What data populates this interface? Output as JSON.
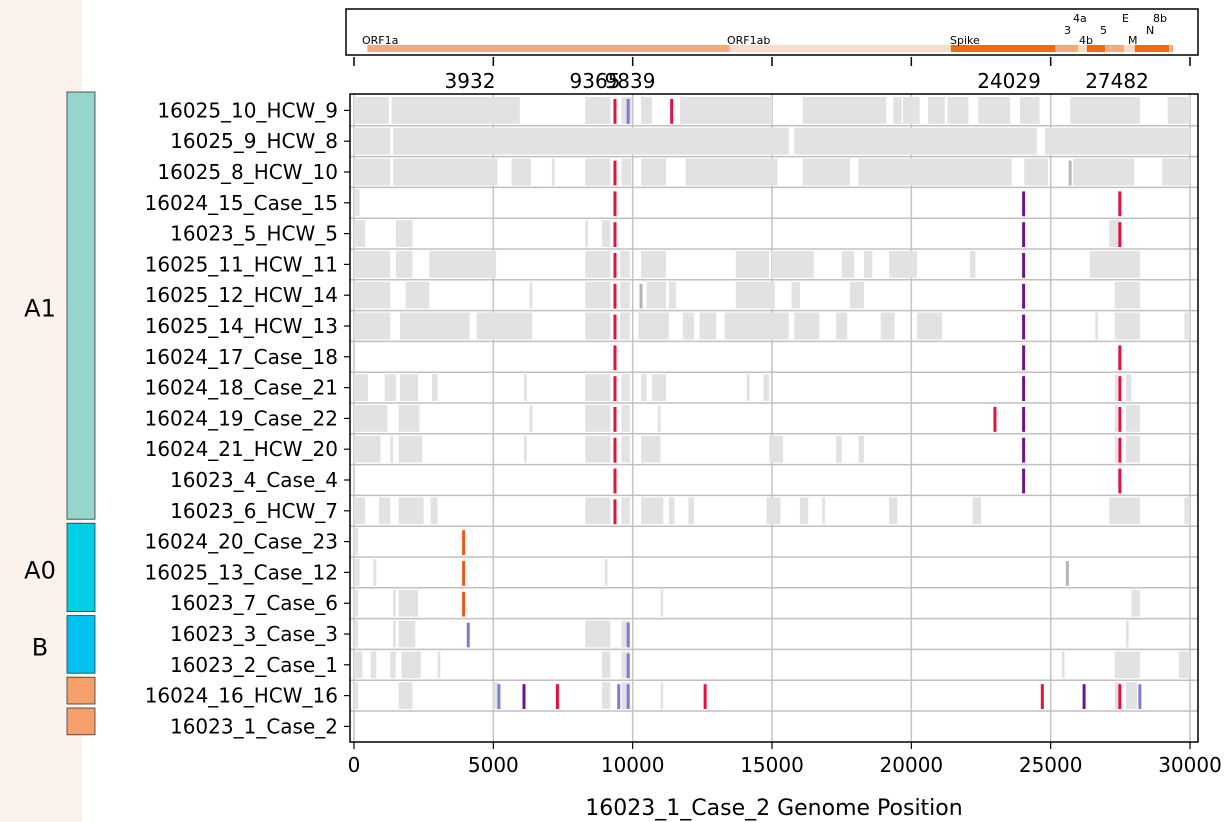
{
  "chart_data": {
    "type": "genome-alignment",
    "xlabel": "16023_1_Case_2 Genome Position",
    "xlim": [
      0,
      30000
    ],
    "xticks": [
      0,
      5000,
      10000,
      15000,
      20000,
      25000,
      30000
    ],
    "grid": true,
    "highlight_positions": [
      3932,
      9365,
      9839,
      24029,
      27482
    ],
    "genes": [
      {
        "name": "ORF1a",
        "start": 266,
        "end": 13483,
        "color": "#f8a876",
        "label": "ORF1a"
      },
      {
        "name": "ORF1ab",
        "start": 13483,
        "end": 21555,
        "color": "#fcdcc8",
        "label": "ORF1ab"
      },
      {
        "name": "S",
        "start": 21563,
        "end": 25384,
        "color": "#ee6a10",
        "label": "Spike"
      },
      {
        "name": "ORF3a",
        "start": 25393,
        "end": 26220,
        "color": "#f8a876",
        "label": "3"
      },
      {
        "name": "E",
        "start": 26245,
        "end": 26472,
        "color": "#fcdcc8",
        "label": "E"
      },
      {
        "name": "M",
        "start": 26523,
        "end": 27191,
        "color": "#ee6a10",
        "label": "M"
      },
      {
        "name": "ORF6",
        "start": 27202,
        "end": 27387,
        "color": "#f8a876",
        "label": ""
      },
      {
        "name": "ORF7a",
        "start": 27394,
        "end": 27759,
        "color": "#f8a876",
        "label": "4a"
      },
      {
        "name": "ORF7b",
        "start": 27756,
        "end": 27887,
        "color": "#f8a876",
        "label": "4b"
      },
      {
        "name": "ORF8",
        "start": 27894,
        "end": 28259,
        "color": "#fcdcc8",
        "label": "5"
      },
      {
        "name": "N",
        "start": 28274,
        "end": 29533,
        "color": "#ee6a10",
        "label": "N"
      },
      {
        "name": "ORF10",
        "start": 29558,
        "end": 29674,
        "color": "#f8a876",
        "label": "8b"
      }
    ],
    "groups": [
      {
        "label": "A1",
        "rows": [
          0,
          13
        ],
        "color": "#94d6cc"
      },
      {
        "label": "A0",
        "rows": [
          14,
          16
        ],
        "color": "#00cfe6"
      },
      {
        "label": "B",
        "rows": [
          17,
          18
        ],
        "color": "#00c2f1"
      },
      {
        "label": "",
        "rows": [
          19,
          19
        ],
        "color": "#f5a06a"
      },
      {
        "label": "",
        "rows": [
          20,
          20
        ],
        "color": "#f5a06a"
      }
    ],
    "colors": {
      "gap": "#e2e2e2",
      "gap_dark": "#b6b6b6",
      "red": "#e3123d",
      "purple": "#6a168e",
      "blue": "#7b7bd8",
      "orange": "#ee5a1c",
      "rowline": "#c0c0c0",
      "grid": "#c4c4c4"
    },
    "samples": [
      {
        "name": "16025_10_HCW_9",
        "gaps": [
          [
            0,
            1250
          ],
          [
            1350,
            5950
          ],
          [
            8300,
            9200
          ],
          [
            9600,
            9960
          ],
          [
            10300,
            10700
          ],
          [
            11700,
            15000
          ],
          [
            16100,
            19100
          ],
          [
            19350,
            19650
          ],
          [
            19700,
            20300
          ],
          [
            20600,
            21200
          ],
          [
            21300,
            22050
          ],
          [
            22400,
            23550
          ],
          [
            23900,
            24600
          ],
          [
            25700,
            28200
          ],
          [
            29200,
            30000
          ]
        ],
        "muts": [
          [
            9365,
            "red"
          ],
          [
            9839,
            "blue"
          ],
          [
            11400,
            "red"
          ]
        ]
      },
      {
        "name": "16025_9_HCW_8",
        "gaps": [
          [
            0,
            1300
          ],
          [
            1400,
            15600
          ],
          [
            15800,
            24500
          ],
          [
            24800,
            30000
          ]
        ],
        "muts": []
      },
      {
        "name": "16025_8_HCW_10",
        "gaps": [
          [
            0,
            1300
          ],
          [
            1400,
            5150
          ],
          [
            5650,
            6350
          ],
          [
            7100,
            7200
          ],
          [
            8300,
            9200
          ],
          [
            9600,
            9950
          ],
          [
            10300,
            11200
          ],
          [
            11900,
            15200
          ],
          [
            16100,
            17800
          ],
          [
            18100,
            23600
          ],
          [
            24050,
            24900
          ],
          [
            25800,
            28000
          ],
          [
            29000,
            30000
          ]
        ],
        "muts": [
          [
            9365,
            "red"
          ],
          [
            25700,
            "gap_dark"
          ]
        ]
      },
      {
        "name": "16024_15_Case_15",
        "gaps": [
          [
            0,
            200
          ]
        ],
        "muts": [
          [
            9365,
            "red"
          ],
          [
            24029,
            "purple"
          ],
          [
            27482,
            "red"
          ]
        ]
      },
      {
        "name": "16023_5_HCW_5",
        "gaps": [
          [
            0,
            400
          ],
          [
            1500,
            2100
          ],
          [
            8300,
            8400
          ],
          [
            8900,
            9200
          ],
          [
            27100,
            27500
          ]
        ],
        "muts": [
          [
            9365,
            "red"
          ],
          [
            24029,
            "purple"
          ],
          [
            27482,
            "red"
          ]
        ]
      },
      {
        "name": "16025_11_HCW_11",
        "gaps": [
          [
            0,
            1300
          ],
          [
            1500,
            2100
          ],
          [
            2700,
            5100
          ],
          [
            8300,
            9200
          ],
          [
            9550,
            9900
          ],
          [
            10300,
            11200
          ],
          [
            13700,
            14900
          ],
          [
            15000,
            16500
          ],
          [
            17500,
            17950
          ],
          [
            18300,
            18600
          ],
          [
            19200,
            20200
          ],
          [
            22100,
            22300
          ],
          [
            26400,
            28200
          ]
        ],
        "muts": [
          [
            9365,
            "red"
          ],
          [
            24029,
            "purple"
          ]
        ]
      },
      {
        "name": "16025_12_HCW_14",
        "gaps": [
          [
            0,
            1300
          ],
          [
            1850,
            2700
          ],
          [
            6300,
            6400
          ],
          [
            8300,
            9200
          ],
          [
            9550,
            9900
          ],
          [
            10500,
            11200
          ],
          [
            11300,
            11550
          ],
          [
            13700,
            15100
          ],
          [
            15700,
            16000
          ],
          [
            17800,
            18300
          ],
          [
            27300,
            28200
          ]
        ],
        "muts": [
          [
            9365,
            "red"
          ],
          [
            10300,
            "gap_dark"
          ],
          [
            24029,
            "purple"
          ]
        ]
      },
      {
        "name": "16025_14_HCW_13",
        "gaps": [
          [
            0,
            1300
          ],
          [
            1650,
            4150
          ],
          [
            4400,
            6400
          ],
          [
            8300,
            9200
          ],
          [
            9550,
            9900
          ],
          [
            10200,
            11300
          ],
          [
            11800,
            12200
          ],
          [
            12400,
            13000
          ],
          [
            13300,
            15600
          ],
          [
            15800,
            16700
          ],
          [
            17300,
            17700
          ],
          [
            18900,
            19400
          ],
          [
            20200,
            21100
          ],
          [
            26600,
            26700
          ],
          [
            27300,
            28200
          ],
          [
            29800,
            30000
          ]
        ],
        "muts": [
          [
            9365,
            "red"
          ],
          [
            24029,
            "purple"
          ]
        ]
      },
      {
        "name": "16024_17_Case_18",
        "gaps": [],
        "muts": [
          [
            9365,
            "red"
          ],
          [
            24029,
            "purple"
          ],
          [
            27482,
            "red"
          ]
        ]
      },
      {
        "name": "16024_18_Case_21",
        "gaps": [
          [
            0,
            500
          ],
          [
            1100,
            1500
          ],
          [
            1650,
            2300
          ],
          [
            2800,
            3000
          ],
          [
            6100,
            6200
          ],
          [
            8300,
            9200
          ],
          [
            9600,
            9900
          ],
          [
            10300,
            10500
          ],
          [
            10700,
            11200
          ],
          [
            14100,
            14200
          ],
          [
            14700,
            14900
          ],
          [
            27300,
            27400
          ],
          [
            27700,
            27900
          ]
        ],
        "muts": [
          [
            9365,
            "red"
          ],
          [
            24029,
            "purple"
          ],
          [
            27482,
            "red"
          ]
        ]
      },
      {
        "name": "16024_19_Case_22",
        "gaps": [
          [
            0,
            1200
          ],
          [
            1600,
            2350
          ],
          [
            6300,
            6400
          ],
          [
            8300,
            9200
          ],
          [
            9600,
            9900
          ],
          [
            10900,
            11000
          ],
          [
            27300,
            27400
          ],
          [
            27700,
            28200
          ]
        ],
        "muts": [
          [
            9365,
            "red"
          ],
          [
            23000,
            "red"
          ],
          [
            24029,
            "purple"
          ],
          [
            27482,
            "red"
          ]
        ]
      },
      {
        "name": "16024_21_HCW_20",
        "gaps": [
          [
            0,
            950
          ],
          [
            1300,
            1400
          ],
          [
            1600,
            2450
          ],
          [
            6100,
            6200
          ],
          [
            8300,
            9200
          ],
          [
            9600,
            9900
          ],
          [
            10300,
            11000
          ],
          [
            14900,
            15400
          ],
          [
            17300,
            17500
          ],
          [
            18100,
            18300
          ],
          [
            27300,
            27400
          ],
          [
            27700,
            28200
          ]
        ],
        "muts": [
          [
            9365,
            "red"
          ],
          [
            24029,
            "purple"
          ],
          [
            27482,
            "red"
          ]
        ]
      },
      {
        "name": "16023_4_Case_4",
        "gaps": [],
        "muts": [
          [
            9365,
            "red"
          ],
          [
            24029,
            "purple"
          ],
          [
            27482,
            "red"
          ]
        ]
      },
      {
        "name": "16023_6_HCW_7",
        "gaps": [
          [
            0,
            400
          ],
          [
            900,
            1300
          ],
          [
            1600,
            2500
          ],
          [
            2750,
            3000
          ],
          [
            8300,
            9200
          ],
          [
            9600,
            9900
          ],
          [
            10300,
            11100
          ],
          [
            11300,
            11500
          ],
          [
            12000,
            12200
          ],
          [
            14800,
            15300
          ],
          [
            16000,
            16300
          ],
          [
            16800,
            16900
          ],
          [
            19200,
            19500
          ],
          [
            22200,
            22500
          ],
          [
            27100,
            28200
          ],
          [
            29800,
            30000
          ]
        ],
        "muts": [
          [
            9365,
            "red"
          ]
        ]
      },
      {
        "name": "16024_20_Case_23",
        "gaps": [
          [
            0,
            150
          ]
        ],
        "muts": [
          [
            3932,
            "orange"
          ]
        ]
      },
      {
        "name": "16025_13_Case_12",
        "gaps": [
          [
            0,
            200
          ],
          [
            700,
            800
          ],
          [
            9000,
            9100
          ]
        ],
        "muts": [
          [
            3932,
            "orange"
          ],
          [
            25600,
            "gap_dark"
          ]
        ]
      },
      {
        "name": "16023_7_Case_6",
        "gaps": [
          [
            0,
            150
          ],
          [
            1400,
            1500
          ],
          [
            1600,
            2300
          ],
          [
            11000,
            11100
          ],
          [
            27900,
            28200
          ]
        ],
        "muts": [
          [
            3932,
            "orange"
          ]
        ]
      },
      {
        "name": "16023_3_Case_3",
        "gaps": [
          [
            0,
            150
          ],
          [
            1400,
            1500
          ],
          [
            1600,
            2200
          ],
          [
            8300,
            9200
          ],
          [
            9600,
            9900
          ],
          [
            27700,
            27800
          ]
        ],
        "muts": [
          [
            4100,
            "blue"
          ],
          [
            9839,
            "blue"
          ]
        ]
      },
      {
        "name": "16023_2_Case_1",
        "gaps": [
          [
            0,
            300
          ],
          [
            600,
            800
          ],
          [
            1300,
            1500
          ],
          [
            1700,
            2400
          ],
          [
            3000,
            3100
          ],
          [
            8900,
            9200
          ],
          [
            9600,
            9900
          ],
          [
            25400,
            25500
          ],
          [
            27300,
            28200
          ],
          [
            29600,
            30000
          ]
        ],
        "muts": [
          [
            9839,
            "blue"
          ]
        ]
      },
      {
        "name": "16024_16_HCW_16",
        "gaps": [
          [
            0,
            150
          ],
          [
            1600,
            2100
          ],
          [
            5000,
            5200
          ],
          [
            8900,
            9200
          ],
          [
            9600,
            9900
          ],
          [
            11000,
            11100
          ],
          [
            27300,
            27500
          ],
          [
            27700,
            28100
          ]
        ],
        "muts": [
          [
            5200,
            "blue"
          ],
          [
            6100,
            "purple"
          ],
          [
            7300,
            "red"
          ],
          [
            9500,
            "blue"
          ],
          [
            9839,
            "blue"
          ],
          [
            12600,
            "red"
          ],
          [
            24700,
            "red"
          ],
          [
            26200,
            "purple"
          ],
          [
            27482,
            "red"
          ],
          [
            28200,
            "blue"
          ]
        ]
      },
      {
        "name": "16023_1_Case_2",
        "gaps": [],
        "muts": []
      }
    ]
  }
}
